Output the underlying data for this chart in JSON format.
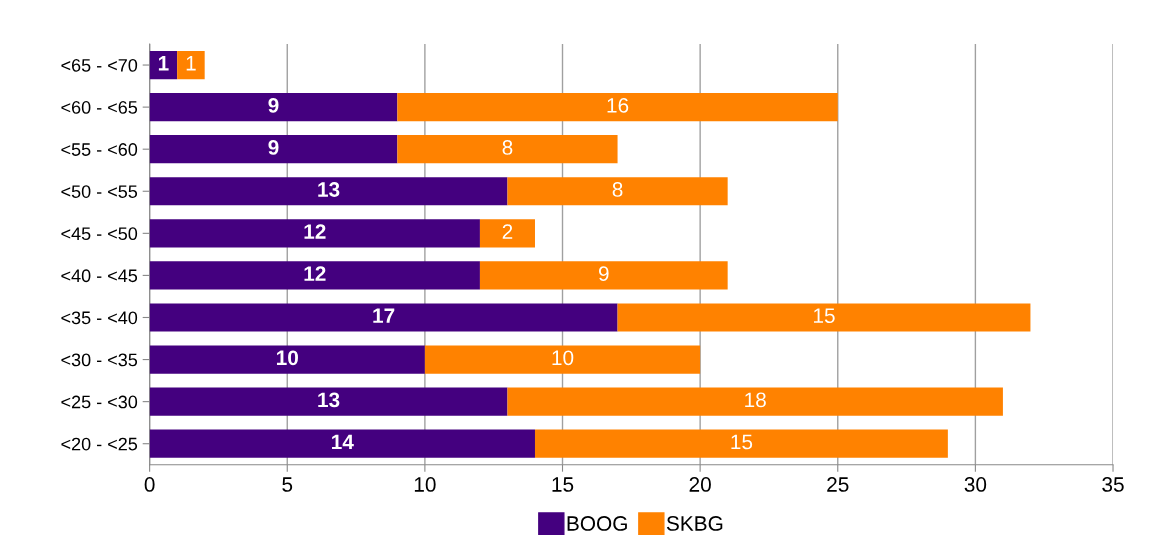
{
  "chart_data": {
    "type": "bar",
    "orientation": "horizontal",
    "stacked": true,
    "categories": [
      "<65 - <70",
      "<60 - <65",
      "<55 - <60",
      "<50 - <55",
      "<45 - <50",
      "<40 - <45",
      "<35 - <40",
      "<30 - <35",
      "<25 - <30",
      "<20 - <25"
    ],
    "series": [
      {
        "name": "BOOG",
        "color": "#44007f",
        "values": [
          1,
          9,
          9,
          13,
          12,
          12,
          17,
          10,
          13,
          14
        ]
      },
      {
        "name": "SKBG",
        "color": "#ff8200",
        "values": [
          1,
          16,
          8,
          8,
          2,
          9,
          15,
          10,
          18,
          15
        ]
      }
    ],
    "xlim": [
      0,
      35
    ],
    "xticks": [
      0,
      5,
      10,
      15,
      20,
      25,
      30,
      35
    ],
    "grid": "x",
    "legend": "bottom",
    "data_labels": true
  }
}
